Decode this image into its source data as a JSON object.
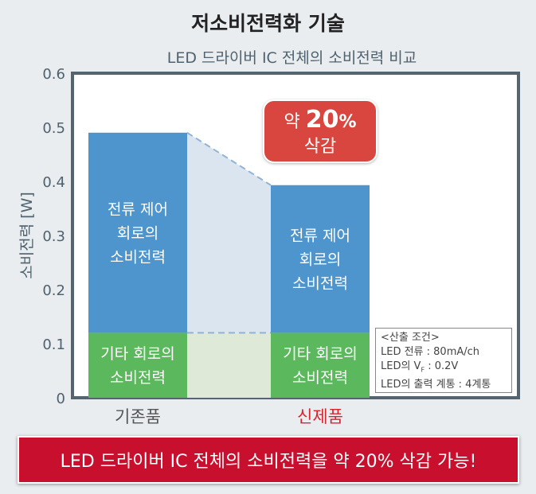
{
  "chart_data": {
    "type": "bar",
    "title": "저소비전력화 기술",
    "subtitle": "LED 드라이버 IC 전체의 소비전력 비교",
    "ylabel": "소비전력 [W]",
    "ylim": [
      0,
      0.6
    ],
    "yticks": [
      "0",
      "0.1",
      "0.2",
      "0.3",
      "0.4",
      "0.5",
      "0.6"
    ],
    "categories": [
      "기존품",
      "신제품"
    ],
    "category_colors": [
      "#555555",
      "#d9232e"
    ],
    "stacked": true,
    "series": [
      {
        "name": "기타 회로의 소비전력",
        "label_lines": [
          "기타 회로의",
          "소비전력"
        ],
        "color": "#5cb85c",
        "values": [
          0.12,
          0.12
        ]
      },
      {
        "name": "전류 제어 회로의 소비전력",
        "label_lines": [
          "전류 제어",
          "회로의",
          "소비전력"
        ],
        "color": "#4f95cd",
        "values": [
          0.37,
          0.273
        ]
      }
    ],
    "annotation": {
      "line1_prefix": "약 ",
      "line1_value": "20",
      "line1_unit": "%",
      "line2": "삭감"
    }
  },
  "note": {
    "lines": [
      "<산출 조건>",
      "LED 전류 : 80mA/ch",
      "LED의 V",
      "F",
      " : 0.2V",
      "LED의 출력 계통 : 4계통"
    ]
  },
  "banner": "LED 드라이버 IC 전체의 소비전력을 약 20% 삭감 가능!"
}
